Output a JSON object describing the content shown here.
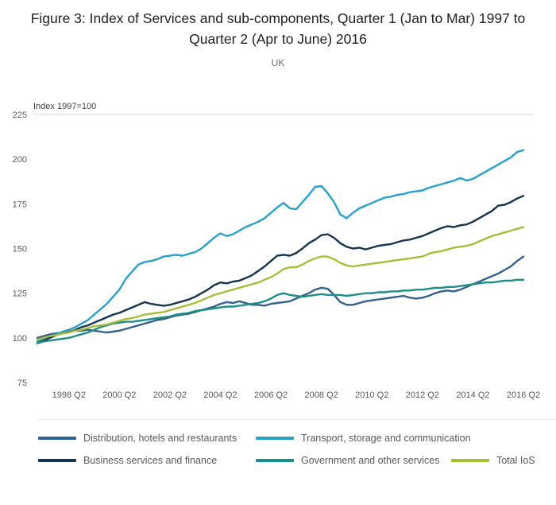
{
  "title": "Figure 3: Index of Services and sub-components, Quarter 1 (Jan to Mar) 1997 to Quarter 2 (Apr to June) 2016",
  "subtitle": "UK",
  "chart_data": {
    "type": "line",
    "title": "Figure 3: Index of Services and sub-components, Quarter 1 (Jan to Mar) 1997 to Quarter 2 (Apr to June) 2016",
    "subtitle": "UK",
    "ylabel": "Index 1997=100",
    "xlabel": "",
    "ylim": [
      75,
      225
    ],
    "y_ticks": [
      225,
      200,
      175,
      150,
      125,
      100,
      75
    ],
    "grid": "top-line-only",
    "grid_color": "#d9d9d9",
    "legend_position": "bottom",
    "x_start": "1997 Q1",
    "x_end": "2016 Q2",
    "x_frequency": "quarterly",
    "x_count": 78,
    "x_tick_labels": [
      "1998 Q2",
      "2000 Q2",
      "2002 Q2",
      "2004 Q2",
      "2006 Q2",
      "2008 Q2",
      "2010 Q2",
      "2012 Q2",
      "2014 Q2",
      "2016 Q2"
    ],
    "x_tick_indices": [
      5,
      13,
      21,
      29,
      37,
      45,
      53,
      61,
      69,
      77
    ],
    "series": [
      {
        "name": "Distribution, hotels and restaurants",
        "color": "#33618d",
        "values": [
          100,
          101,
          102,
          102.5,
          103,
          103.5,
          104,
          104,
          104.5,
          104,
          103.5,
          103,
          103.5,
          104,
          105,
          106,
          107,
          108,
          109,
          110,
          110.5,
          111.5,
          112.5,
          113,
          113.5,
          114.5,
          115.5,
          116.5,
          117.5,
          119,
          120,
          119.5,
          120.5,
          119.5,
          118.5,
          118.5,
          118,
          119,
          119.5,
          120,
          120.5,
          122,
          123.5,
          125,
          127,
          128,
          127.5,
          124,
          120,
          118.5,
          118.5,
          119.5,
          120.5,
          121,
          121.5,
          122,
          122.5,
          123,
          123.5,
          122.5,
          122,
          122.5,
          123.5,
          125,
          126,
          126.5,
          126,
          127,
          128.5,
          130,
          131.5,
          133,
          134.5,
          136,
          138,
          140,
          143,
          145.5
        ]
      },
      {
        "name": "Transport, storage and communication",
        "color": "#27a0cc",
        "values": [
          98,
          99.5,
          101,
          102,
          103.5,
          104.5,
          106,
          108,
          110,
          113,
          116,
          119,
          123,
          127,
          133,
          137,
          141,
          142.5,
          143,
          144,
          145.5,
          146,
          146.5,
          146,
          147,
          148,
          150,
          153,
          156,
          158.5,
          157,
          158,
          160,
          162,
          163.5,
          165,
          167,
          170,
          173,
          175.5,
          172.5,
          172,
          176,
          180,
          184.5,
          185,
          181,
          176,
          169,
          167,
          170,
          172.5,
          174,
          175.5,
          177,
          178.5,
          179,
          180,
          180.5,
          181.5,
          182,
          182.5,
          184,
          185,
          186,
          187,
          188,
          189.5,
          188,
          189,
          191,
          193,
          195,
          197,
          199,
          201,
          204,
          205
        ]
      },
      {
        "name": "Business services and finance",
        "color": "#14344f",
        "values": [
          97,
          98.5,
          100,
          101.5,
          102.5,
          103,
          104.5,
          106,
          107,
          108.5,
          110,
          111.5,
          113,
          114,
          115.5,
          117,
          118.5,
          120,
          119,
          118.5,
          118,
          118.5,
          119.5,
          120.5,
          121.5,
          123,
          125,
          127,
          129.5,
          131,
          130.5,
          131.5,
          132,
          133.5,
          135,
          137.5,
          140,
          143,
          146,
          146.5,
          146,
          147.5,
          150,
          153,
          155,
          157.5,
          158,
          156,
          153,
          151,
          150,
          150.5,
          149.5,
          150.5,
          151.5,
          152,
          152.5,
          153.5,
          154.5,
          155,
          156,
          157,
          158.5,
          160,
          161.5,
          162.5,
          162,
          163,
          163.5,
          165,
          167,
          169,
          171,
          174,
          174.5,
          176,
          178,
          179.5
        ]
      },
      {
        "name": "Government and other services",
        "color": "#1d8e87",
        "values": [
          97,
          98,
          98.5,
          99,
          99.5,
          100,
          101,
          102,
          103,
          104.5,
          106,
          107,
          108,
          108.5,
          109,
          109,
          109.5,
          110,
          110.5,
          111,
          111.5,
          112,
          113,
          113.5,
          114,
          115,
          115.5,
          116,
          116.5,
          117,
          117.5,
          117.5,
          118,
          118.5,
          119,
          119.5,
          120.5,
          122,
          124,
          125,
          124,
          123.5,
          123,
          123.5,
          124,
          124.5,
          124,
          124,
          124,
          123.5,
          124,
          124.5,
          125,
          125,
          125.5,
          125.5,
          126,
          126,
          126.5,
          126.5,
          127,
          127,
          127.5,
          128,
          128,
          128.5,
          128.5,
          129,
          129.5,
          130,
          130.5,
          131,
          131,
          131.5,
          132,
          132,
          132.5,
          132.5
        ]
      },
      {
        "name": "Total IoS",
        "color": "#a8bd3a",
        "values": [
          99,
          100,
          101,
          101.5,
          102.5,
          103,
          104,
          104.5,
          105.5,
          106.5,
          107,
          107.5,
          108.5,
          109.5,
          110.5,
          111,
          112,
          113,
          113.5,
          114,
          114.5,
          115.5,
          116.5,
          117.5,
          118.5,
          119.5,
          121,
          122.5,
          124,
          125,
          126,
          127,
          128,
          129,
          130,
          131,
          132.5,
          134,
          136,
          138.5,
          139.5,
          139.5,
          141,
          143,
          144.5,
          145.5,
          145.5,
          144,
          142,
          140.5,
          140,
          140.5,
          141,
          141.5,
          142,
          142.5,
          143,
          143.5,
          144,
          144.5,
          145,
          145.5,
          147,
          148,
          148.5,
          149.5,
          150.5,
          151,
          151.5,
          152.5,
          154,
          155.5,
          157,
          158,
          159,
          160,
          161,
          162
        ]
      }
    ]
  }
}
